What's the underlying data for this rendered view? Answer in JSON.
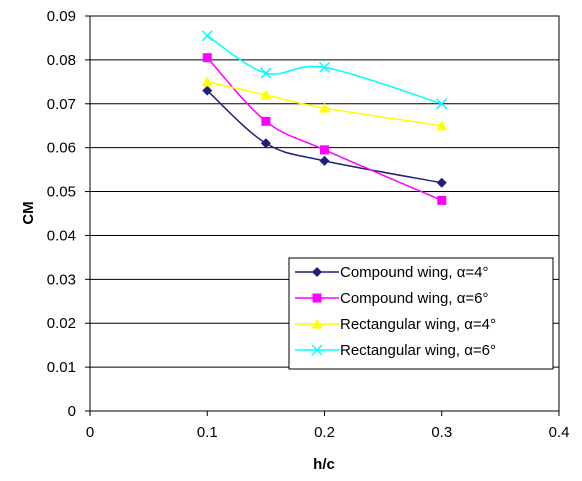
{
  "chart_data": {
    "type": "line",
    "xlabel": "h/c",
    "ylabel": "CM",
    "xlim": [
      0,
      0.4
    ],
    "ylim": [
      0,
      0.09
    ],
    "x_ticks": [
      "0",
      "0.1",
      "0.2",
      "0.3",
      "0.4"
    ],
    "y_ticks": [
      "0",
      "0.01",
      "0.02",
      "0.03",
      "0.04",
      "0.05",
      "0.06",
      "0.07",
      "0.08",
      "0.09"
    ],
    "grid": "horizontal",
    "legend_position": "bottom-right",
    "x": [
      0.1,
      0.15,
      0.2,
      0.3
    ],
    "series": [
      {
        "name": "Compound  wing, α=4°",
        "values": [
          0.073,
          0.061,
          0.057,
          0.052
        ],
        "color": "#1f1f7a",
        "marker": "diamond"
      },
      {
        "name": "Compound  wing, α=6°",
        "values": [
          0.0805,
          0.066,
          0.0595,
          0.048
        ],
        "color": "#ff00ff",
        "marker": "square"
      },
      {
        "name": "Rectangular  wing, α=4°",
        "values": [
          0.075,
          0.072,
          0.069,
          0.065
        ],
        "color": "#ffff00",
        "marker": "triangle"
      },
      {
        "name": "Rectangular  wing, α=6°",
        "values": [
          0.0855,
          0.077,
          0.0783,
          0.07
        ],
        "color": "#00ffff",
        "marker": "x"
      }
    ]
  }
}
